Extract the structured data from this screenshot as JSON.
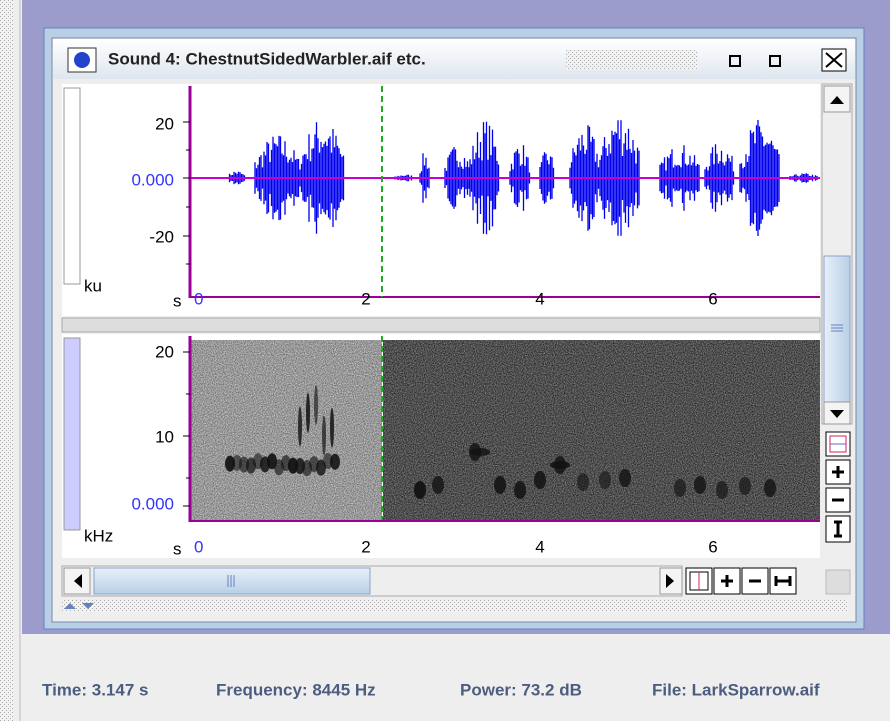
{
  "window": {
    "title": "Sound 4: ChestnutSidedWarbler.aif etc."
  },
  "waveform": {
    "y_unit": "ku",
    "y_ticks": [
      "20",
      "0.000",
      "-20"
    ],
    "x_unit": "s",
    "x_ticks": [
      "0",
      "2",
      "4",
      "6"
    ]
  },
  "spectrogram": {
    "y_unit": "kHz",
    "y_ticks": [
      "20",
      "10",
      "0.000"
    ],
    "x_unit": "s",
    "x_ticks": [
      "0",
      "2",
      "4",
      "6"
    ]
  },
  "status": {
    "time": "Time: 3.147 s",
    "frequency": "Frequency: 8445 Hz",
    "power": "Power: 73.2 dB",
    "file": "File: LarkSparrow.aif"
  }
}
